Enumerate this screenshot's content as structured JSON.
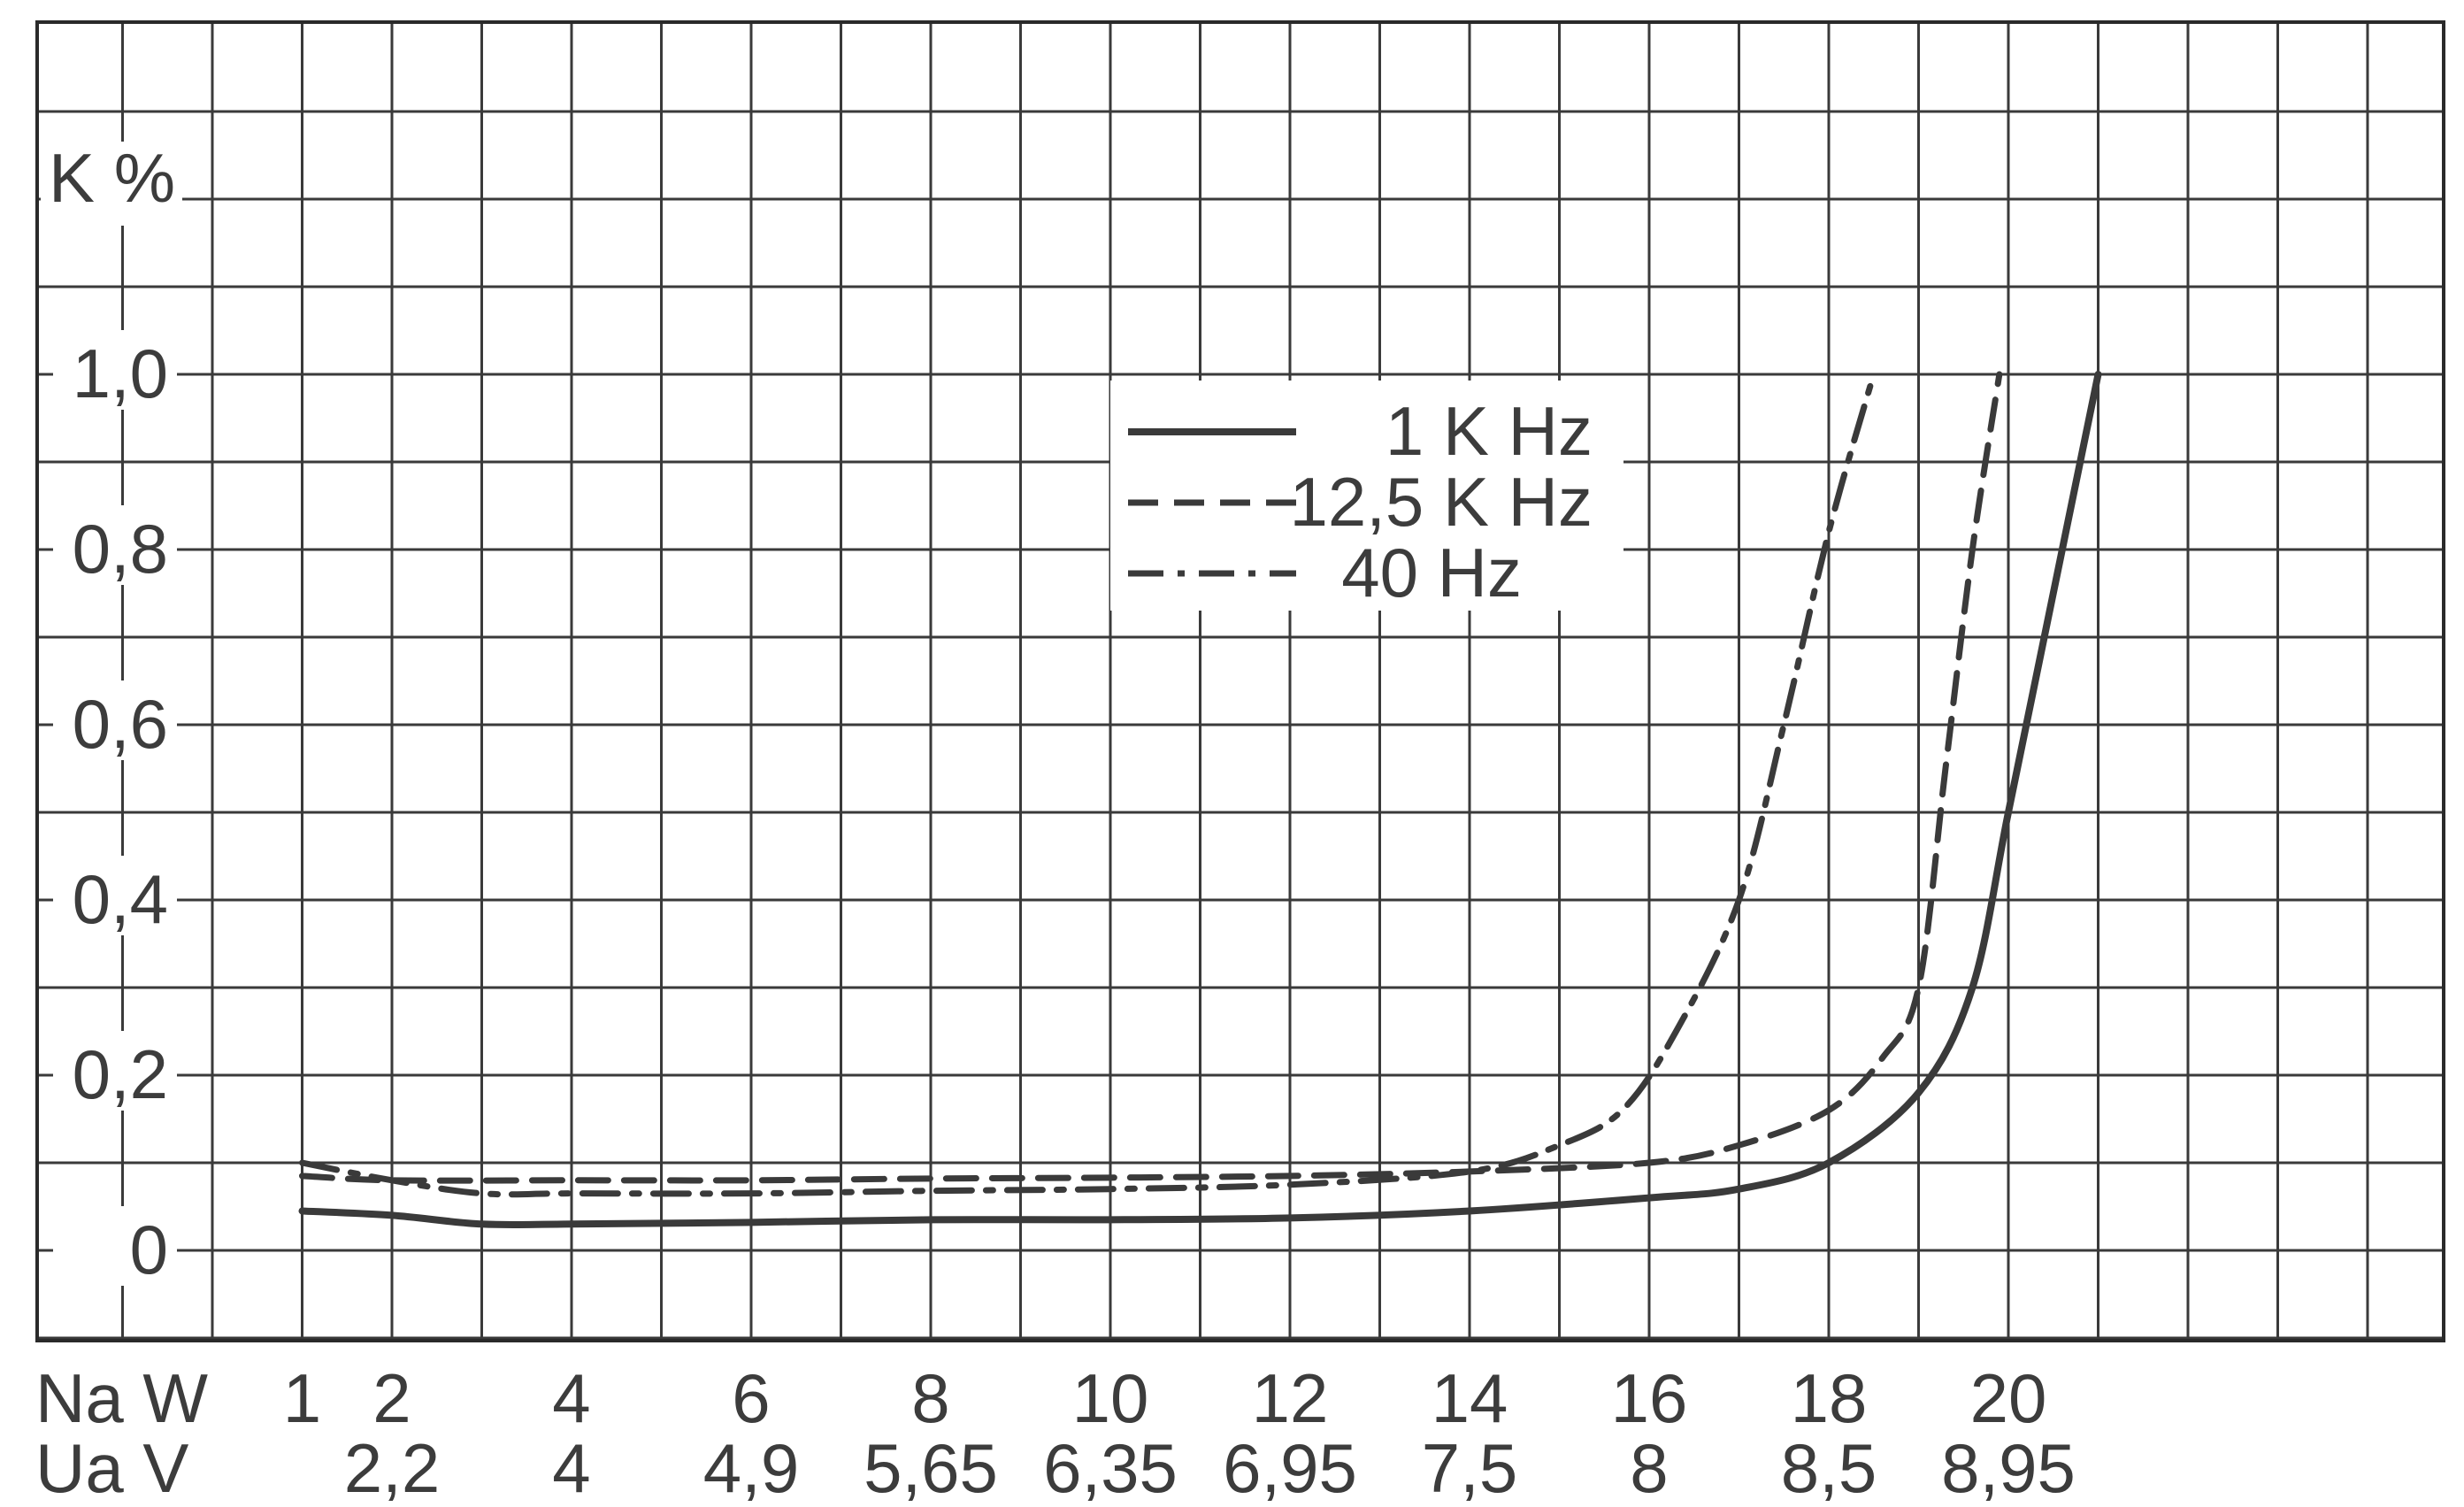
{
  "chart_data": {
    "type": "line",
    "ylabel": "K %",
    "xlabel_primary": "Na W",
    "xlabel_secondary": "Ua V",
    "xlim": [
      0,
      24
    ],
    "ylim": [
      0,
      1.2
    ],
    "grid": true,
    "legend_position": "top-center",
    "y_ticks": [
      {
        "value": 0,
        "label": "0"
      },
      {
        "value": 0.2,
        "label": "0,2"
      },
      {
        "value": 0.4,
        "label": "0,4"
      },
      {
        "value": 0.6,
        "label": "0,6"
      },
      {
        "value": 0.8,
        "label": "0,8"
      },
      {
        "value": 1.0,
        "label": "1,0"
      }
    ],
    "x_ticks_primary": [
      {
        "value": 1,
        "label": "1"
      },
      {
        "value": 2,
        "label": "2"
      },
      {
        "value": 4,
        "label": "4"
      },
      {
        "value": 6,
        "label": "6"
      },
      {
        "value": 8,
        "label": "8"
      },
      {
        "value": 10,
        "label": "10"
      },
      {
        "value": 12,
        "label": "12"
      },
      {
        "value": 14,
        "label": "14"
      },
      {
        "value": 16,
        "label": "16"
      },
      {
        "value": 18,
        "label": "18"
      },
      {
        "value": 20,
        "label": "20"
      }
    ],
    "x_ticks_secondary": [
      {
        "value": 2,
        "label": "2,2"
      },
      {
        "value": 4,
        "label": "4"
      },
      {
        "value": 6,
        "label": "4,9"
      },
      {
        "value": 8,
        "label": "5,65"
      },
      {
        "value": 10,
        "label": "6,35"
      },
      {
        "value": 12,
        "label": "6,95"
      },
      {
        "value": 14,
        "label": "7,5"
      },
      {
        "value": 16,
        "label": "8"
      },
      {
        "value": 18,
        "label": "8,5"
      },
      {
        "value": 20,
        "label": "8,95"
      }
    ],
    "series": [
      {
        "name": "1 K Hz",
        "style": "solid",
        "points": [
          [
            1,
            0.045
          ],
          [
            2,
            0.04
          ],
          [
            3,
            0.03
          ],
          [
            4,
            0.03
          ],
          [
            6,
            0.032
          ],
          [
            8,
            0.035
          ],
          [
            10,
            0.035
          ],
          [
            12,
            0.037
          ],
          [
            14,
            0.045
          ],
          [
            16,
            0.06
          ],
          [
            17,
            0.07
          ],
          [
            18,
            0.1
          ],
          [
            19,
            0.18
          ],
          [
            19.6,
            0.3
          ],
          [
            20,
            0.5
          ],
          [
            20.5,
            0.75
          ],
          [
            21,
            1.0
          ]
        ]
      },
      {
        "name": "12,5 K Hz",
        "style": "dashed",
        "points": [
          [
            1,
            0.085
          ],
          [
            2,
            0.08
          ],
          [
            4,
            0.08
          ],
          [
            6,
            0.08
          ],
          [
            8,
            0.082
          ],
          [
            10,
            0.083
          ],
          [
            12,
            0.085
          ],
          [
            14,
            0.09
          ],
          [
            16,
            0.1
          ],
          [
            17,
            0.12
          ],
          [
            18,
            0.16
          ],
          [
            18.6,
            0.22
          ],
          [
            19,
            0.3
          ],
          [
            19.3,
            0.55
          ],
          [
            19.6,
            0.8
          ],
          [
            19.9,
            1.0
          ]
        ]
      },
      {
        "name": "40 Hz",
        "style": "dashdot",
        "points": [
          [
            1,
            0.1
          ],
          [
            2,
            0.08
          ],
          [
            3,
            0.065
          ],
          [
            4,
            0.065
          ],
          [
            6,
            0.065
          ],
          [
            8,
            0.068
          ],
          [
            10,
            0.07
          ],
          [
            12,
            0.075
          ],
          [
            14,
            0.09
          ],
          [
            15,
            0.12
          ],
          [
            15.7,
            0.16
          ],
          [
            16.3,
            0.25
          ],
          [
            17,
            0.4
          ],
          [
            17.5,
            0.6
          ],
          [
            18,
            0.82
          ],
          [
            18.5,
            1.0
          ]
        ]
      }
    ]
  }
}
